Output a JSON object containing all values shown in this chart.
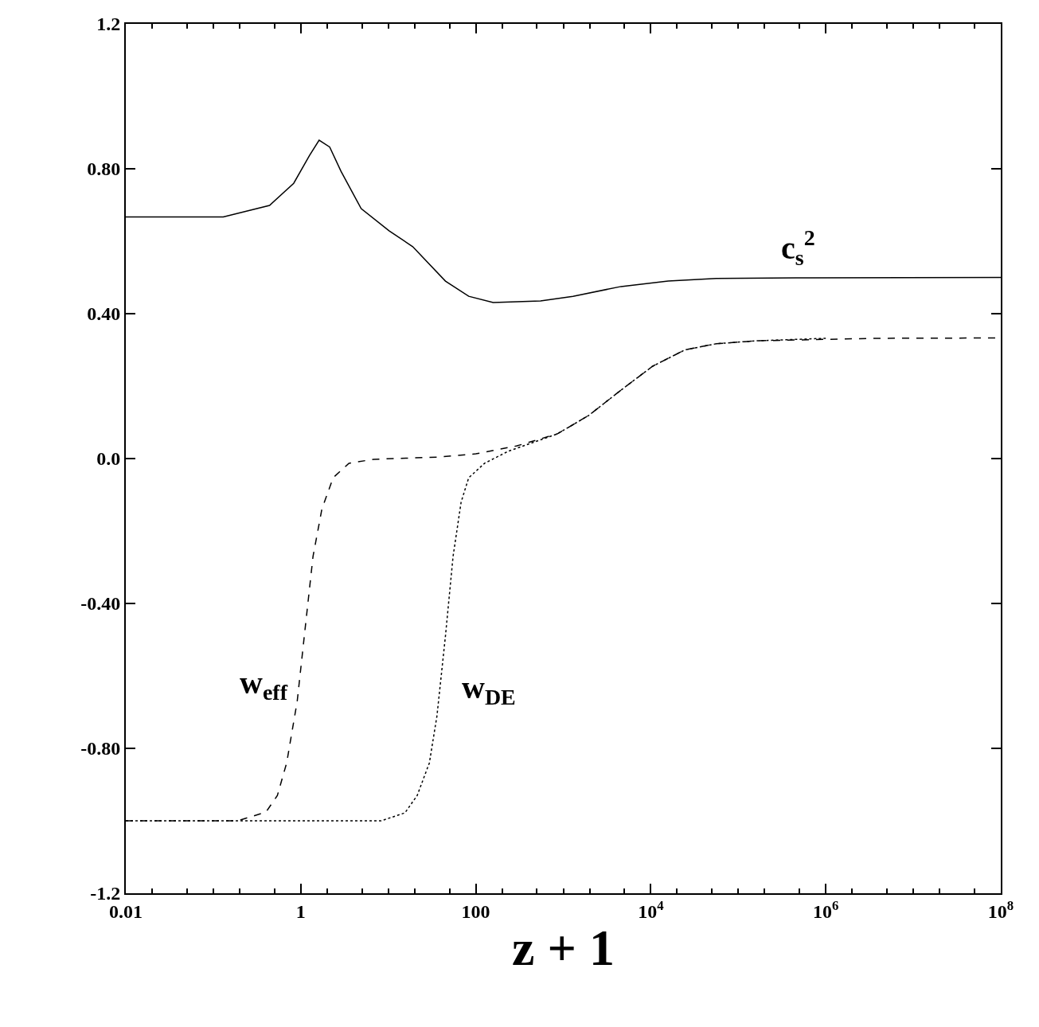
{
  "chart_data": {
    "type": "line",
    "xlabel": "z + 1",
    "log": "x",
    "legend": false,
    "xlim": [
      0.01,
      100000000
    ],
    "ylim": [
      -1.2,
      1.2
    ],
    "xticks": [
      0.01,
      1,
      100,
      {
        "value": 10000,
        "label": "10$^{4}$"
      },
      {
        "value": 1000000,
        "label": "10$^{6}$"
      },
      {
        "value": 100000000,
        "label": "10$^{8}$"
      }
    ],
    "yticks": [
      {
        "value": -1.2,
        "label": "-1.2"
      },
      {
        "value": -0.8,
        "label": "-0.80"
      },
      {
        "value": -0.4,
        "label": "-0.40"
      },
      {
        "value": 0,
        "label": "0.0"
      },
      {
        "value": 0.4,
        "label": "0.40"
      },
      {
        "value": 0.8,
        "label": "0.80"
      },
      {
        "value": 1.2,
        "label": "1.2"
      }
    ],
    "series": [
      {
        "name": "c$_{s}$$^{2}$",
        "color": "#000000",
        "line_style": "solid",
        "x": [
          0.01,
          0.13,
          0.44,
          0.83,
          1.26,
          1.62,
          2.14,
          2.88,
          4.9,
          10.2,
          19,
          45,
          83,
          158,
          550,
          1290,
          4570,
          15800,
          56000,
          457000,
          100000000
        ],
        "values": [
          0.667,
          0.667,
          0.699,
          0.76,
          0.837,
          0.879,
          0.86,
          0.793,
          0.69,
          0.629,
          0.585,
          0.49,
          0.448,
          0.431,
          0.435,
          0.448,
          0.475,
          0.49,
          0.497,
          0.499,
          0.5
        ]
      },
      {
        "name": "w$_{eff}$",
        "color": "#000000",
        "line_style": "dashed",
        "x": [
          0.01,
          0.19,
          0.4,
          0.54,
          0.69,
          0.91,
          1.12,
          1.38,
          1.74,
          2.34,
          3.55,
          6.8,
          36,
          100,
          295,
          850,
          1950,
          4570,
          10500,
          24500,
          56000,
          158000,
          3800000,
          100000000
        ],
        "values": [
          -1.0,
          -1.0,
          -0.976,
          -0.93,
          -0.84,
          -0.67,
          -0.47,
          -0.27,
          -0.14,
          -0.053,
          -0.013,
          -0.002,
          0.004,
          0.013,
          0.035,
          0.068,
          0.119,
          0.189,
          0.255,
          0.3,
          0.317,
          0.325,
          0.332,
          0.333
        ]
      },
      {
        "name": "w$_{DE}$",
        "color": "#000000",
        "line_style": "dotted",
        "x": [
          0.01,
          8.3,
          15.5,
          21.4,
          29.5,
          36,
          45,
          55,
          68,
          83,
          126,
          234,
          850,
          1950,
          4570,
          10500,
          24500,
          56000,
          158000,
          1000000
        ],
        "values": [
          -1.0,
          -1.0,
          -0.978,
          -0.93,
          -0.84,
          -0.71,
          -0.49,
          -0.27,
          -0.12,
          -0.053,
          -0.013,
          0.02,
          0.068,
          0.119,
          0.189,
          0.255,
          0.3,
          0.317,
          0.325,
          0.332
        ]
      }
    ]
  }
}
